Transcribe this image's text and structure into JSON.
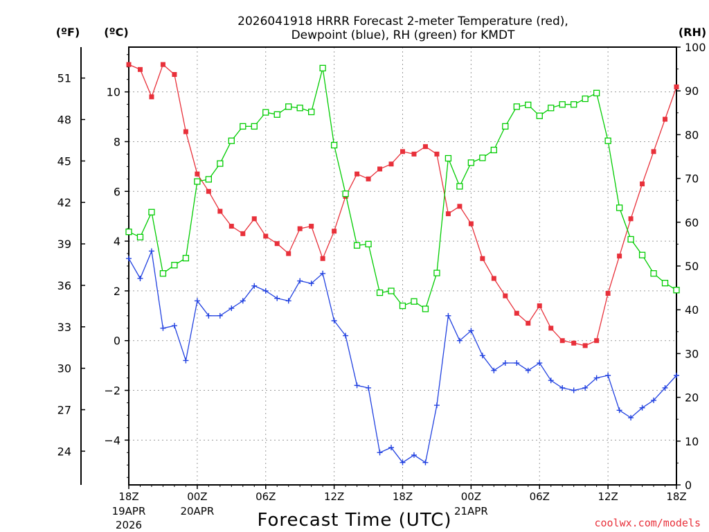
{
  "page": {
    "title_line1": "2026041918 HRRR Forecast 2-meter Temperature (red),",
    "title_line2": "Dewpoint (blue), RH (green) for KMDT",
    "xlabel": "Forecast Time (UTC)",
    "credit": "coolwx.com/models",
    "unit_f": "(ºF)",
    "unit_c": "(ºC)",
    "unit_rh": "(RH)"
  },
  "chart_data": {
    "type": "line",
    "x_range_hours": [
      0,
      48
    ],
    "x_ticks": [
      {
        "h": 0,
        "label": "18Z",
        "sub1": "19APR",
        "sub2": "2026"
      },
      {
        "h": 6,
        "label": "00Z",
        "sub1": "20APR",
        "sub2": ""
      },
      {
        "h": 12,
        "label": "06Z",
        "sub1": "",
        "sub2": ""
      },
      {
        "h": 18,
        "label": "12Z",
        "sub1": "",
        "sub2": ""
      },
      {
        "h": 24,
        "label": "18Z",
        "sub1": "",
        "sub2": ""
      },
      {
        "h": 30,
        "label": "00Z",
        "sub1": "21APR",
        "sub2": ""
      },
      {
        "h": 36,
        "label": "06Z",
        "sub1": "",
        "sub2": ""
      },
      {
        "h": 42,
        "label": "12Z",
        "sub1": "",
        "sub2": ""
      },
      {
        "h": 48,
        "label": "18Z",
        "sub1": "",
        "sub2": ""
      }
    ],
    "c_range": [
      -5.8,
      11.8
    ],
    "c_ticks": [
      -4,
      -2,
      0,
      2,
      4,
      6,
      8,
      10
    ],
    "f_ticks": [
      24,
      27,
      30,
      33,
      36,
      39,
      42,
      45,
      48,
      51
    ],
    "rh_range": [
      0,
      100
    ],
    "rh_ticks": [
      0,
      10,
      20,
      30,
      40,
      50,
      60,
      70,
      80,
      90,
      100
    ],
    "series": [
      {
        "name": "2-meter Temperature",
        "unit": "C",
        "color": "#e8303a",
        "marker": "filled-square",
        "values": [
          11.1,
          10.9,
          9.8,
          11.1,
          10.7,
          8.4,
          6.7,
          6.0,
          5.2,
          4.6,
          4.3,
          4.9,
          4.2,
          3.9,
          3.5,
          4.5,
          4.6,
          3.3,
          4.4,
          5.8,
          6.7,
          6.5,
          6.9,
          7.1,
          7.6,
          7.5,
          7.8,
          7.5,
          5.1,
          5.4,
          4.7,
          3.3,
          2.5,
          1.8,
          1.1,
          0.7,
          1.4,
          0.5,
          0.0,
          -0.1,
          -0.2,
          0.0,
          1.9,
          3.4,
          4.9,
          6.3,
          7.6,
          8.9,
          10.2
        ]
      },
      {
        "name": "Dewpoint",
        "unit": "C",
        "color": "#2040e0",
        "marker": "plus",
        "values": [
          3.3,
          2.5,
          3.6,
          0.5,
          0.6,
          -0.8,
          1.6,
          1.0,
          1.0,
          1.3,
          1.6,
          2.2,
          2.0,
          1.7,
          1.6,
          2.4,
          2.3,
          2.7,
          0.8,
          0.2,
          -1.8,
          -1.9,
          -4.5,
          -4.3,
          -4.9,
          -4.6,
          -4.9,
          -2.6,
          1.0,
          0.0,
          0.4,
          -0.6,
          -1.2,
          -0.9,
          -0.9,
          -1.2,
          -0.9,
          -1.6,
          -1.9,
          -2.0,
          -1.9,
          -1.5,
          -1.4,
          -2.8,
          -3.1,
          -2.7,
          -2.4,
          -1.9,
          -1.4
        ]
      },
      {
        "name": "RH",
        "unit": "%",
        "color": "#00cc00",
        "marker": "open-square",
        "values": [
          57.8,
          56.6,
          62.3,
          48.3,
          50.2,
          51.8,
          69.3,
          69.8,
          73.4,
          78.6,
          81.9,
          81.9,
          85.1,
          84.6,
          86.4,
          86.1,
          85.2,
          95.2,
          77.6,
          66.5,
          54.7,
          55.0,
          43.9,
          44.3,
          40.9,
          41.9,
          40.2,
          48.4,
          74.6,
          68.2,
          73.6,
          74.7,
          76.5,
          81.9,
          86.4,
          86.8,
          84.3,
          86.1,
          86.9,
          86.9,
          88.2,
          89.5,
          78.6,
          63.3,
          56.1,
          52.5,
          48.3,
          46.1,
          44.5
        ]
      }
    ]
  }
}
